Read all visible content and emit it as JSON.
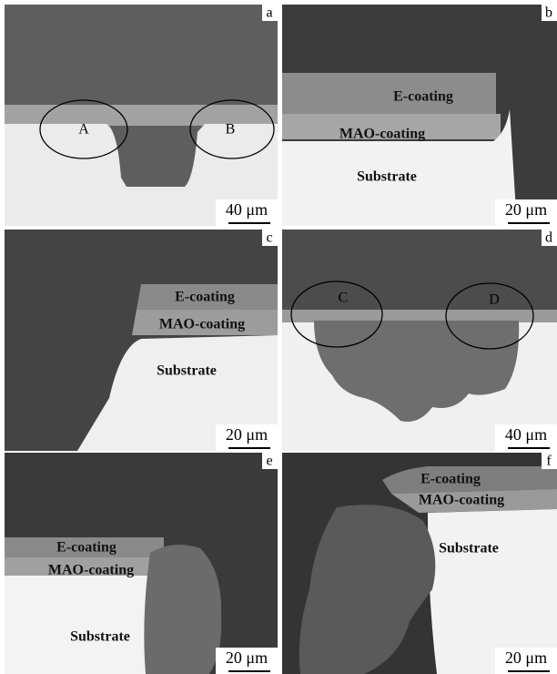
{
  "panels": [
    {
      "letter": "a",
      "scale_bar": "40 μm",
      "markers": [
        "A",
        "B"
      ]
    },
    {
      "letter": "b",
      "scale_bar": "20 μm",
      "labels": [
        "E-coating",
        "MAO-coating",
        "Substrate"
      ]
    },
    {
      "letter": "c",
      "scale_bar": "20 μm",
      "labels": [
        "E-coating",
        "MAO-coating",
        "Substrate"
      ]
    },
    {
      "letter": "d",
      "scale_bar": "40 μm",
      "markers": [
        "C",
        "D"
      ]
    },
    {
      "letter": "e",
      "scale_bar": "20 μm",
      "labels": [
        "E-coating",
        "MAO-coating",
        "Substrate"
      ]
    },
    {
      "letter": "f",
      "scale_bar": "20 μm",
      "labels": [
        "E-coating",
        "MAO-coating",
        "Substrate"
      ]
    }
  ]
}
